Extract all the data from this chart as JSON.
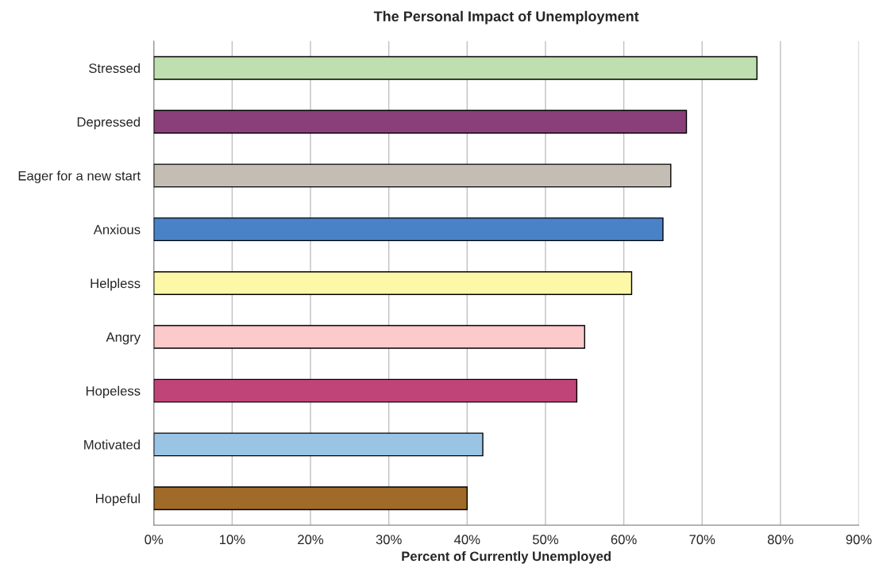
{
  "chart_data": {
    "type": "bar",
    "orientation": "horizontal",
    "title": "The Personal Impact of Unemployment",
    "xlabel": "Percent of Currently Unemployed",
    "categories": [
      "Stressed",
      "Depressed",
      "Eager for a new start",
      "Anxious",
      "Helpless",
      "Angry",
      "Hopeless",
      "Motivated",
      "Hopeful"
    ],
    "values": [
      77,
      68,
      66,
      65,
      61,
      55,
      54,
      42,
      40
    ],
    "colors": [
      "#c0dfb0",
      "#8a3f7a",
      "#c4bdb4",
      "#4a82c8",
      "#fdf8a8",
      "#fdcacc",
      "#c04478",
      "#99c4e4",
      "#a06a28"
    ],
    "xlim": [
      0,
      90
    ],
    "xticks": [
      {
        "value": 0,
        "label": "0%"
      },
      {
        "value": 10,
        "label": "10%"
      },
      {
        "value": 20,
        "label": "20%"
      },
      {
        "value": 30,
        "label": "30%"
      },
      {
        "value": 40,
        "label": "40%"
      },
      {
        "value": 50,
        "label": "50%"
      },
      {
        "value": 60,
        "label": "60%"
      },
      {
        "value": 70,
        "label": "70%"
      },
      {
        "value": 80,
        "label": "80%"
      },
      {
        "value": 90,
        "label": "90%"
      }
    ],
    "grid": "x",
    "legend": false
  }
}
